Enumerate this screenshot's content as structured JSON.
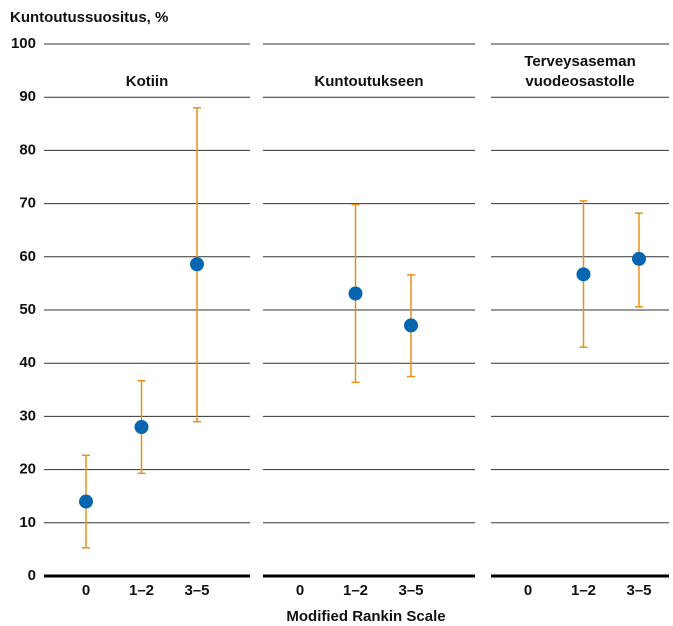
{
  "chart_data": {
    "type": "dot",
    "y_label": "Kuntoutussuositus, %",
    "x_label": "Modified Rankin Scale",
    "ylim": [
      0,
      100
    ],
    "yticks": [
      0,
      10,
      20,
      30,
      40,
      50,
      60,
      70,
      80,
      90,
      100
    ],
    "grid": true,
    "categories": [
      "0",
      "1–2",
      "3–5"
    ],
    "color": "#0866b0",
    "error_color": "#e8901c",
    "panels": [
      {
        "title": [
          "Kotiin"
        ],
        "values": [
          14,
          28,
          58.6
        ],
        "lower": [
          5.3,
          19.3,
          29
        ],
        "upper": [
          22.7,
          36.7,
          88
        ]
      },
      {
        "title": [
          "Kuntoutukseen"
        ],
        "values": [
          null,
          53.1,
          47.1
        ],
        "lower": [
          null,
          36.4,
          37.5
        ],
        "upper": [
          null,
          69.8,
          56.6
        ]
      },
      {
        "title": [
          "Terveysaseman",
          "vuodeosastolle"
        ],
        "values": [
          null,
          56.7,
          59.6
        ],
        "lower": [
          null,
          43,
          50.6
        ],
        "upper": [
          null,
          70.5,
          68.2
        ]
      }
    ]
  }
}
